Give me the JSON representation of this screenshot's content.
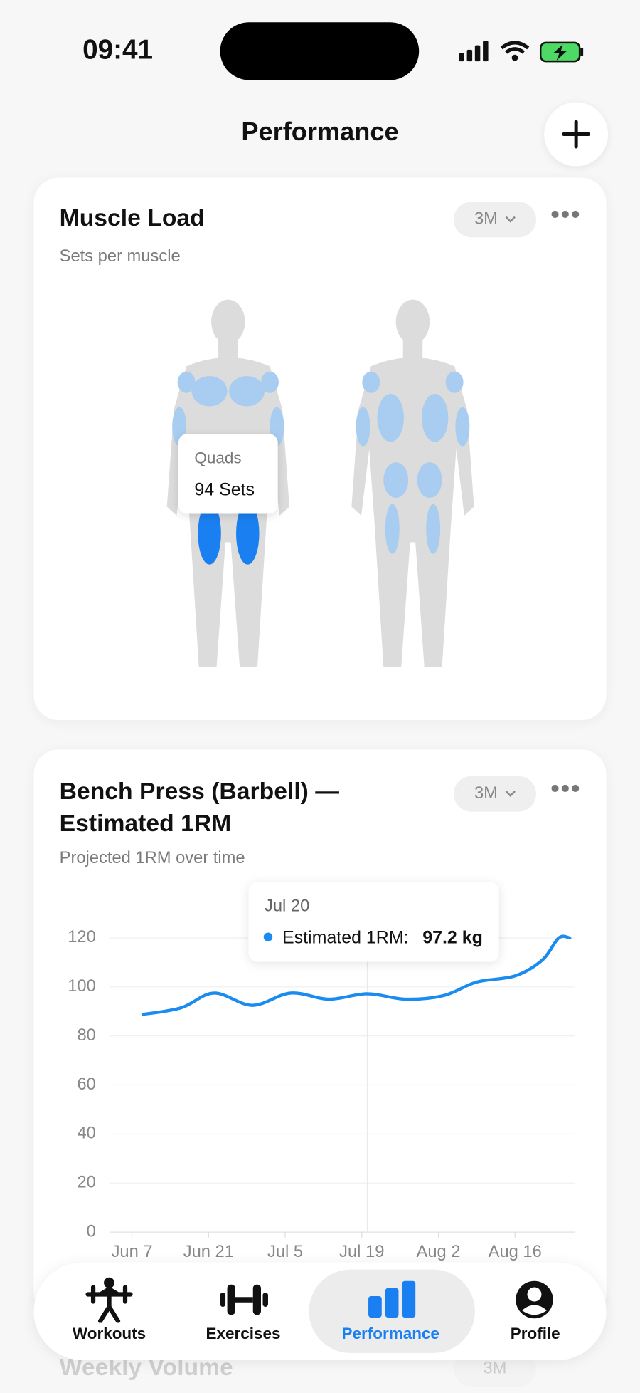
{
  "status_bar": {
    "time": "09:41"
  },
  "header": {
    "title": "Performance"
  },
  "muscle_card": {
    "title": "Muscle Load",
    "subtitle": "Sets per muscle",
    "range": "3M",
    "tooltip": {
      "muscle": "Quads",
      "sets": "94 Sets"
    }
  },
  "chart_card": {
    "title_line1": "Bench Press (Barbell) —",
    "title_line2": "Estimated 1RM",
    "subtitle": "Projected 1RM over time",
    "range": "3M"
  },
  "chart_data": {
    "type": "line",
    "x": [
      "Jun 9",
      "Jun 16",
      "Jun 22",
      "Jun 29",
      "Jul 6",
      "Jul 13",
      "Jul 20",
      "Jul 27",
      "Aug 3",
      "Aug 9",
      "Aug 16",
      "Aug 21",
      "Aug 24",
      "Aug 26"
    ],
    "series": [
      {
        "name": "Estimated 1RM:",
        "color": "#1a8cf0",
        "values": [
          88.8,
          91.5,
          97.5,
          92.5,
          97.5,
          95,
          97.2,
          95,
          96.5,
          102,
          104.5,
          111,
          120,
          120
        ]
      }
    ],
    "xlim": [
      "Jun 3",
      "Aug 27"
    ],
    "xticks": [
      "Jun 7",
      "Jun 21",
      "Jul 5",
      "Jul 19",
      "Aug 2",
      "Aug 16"
    ],
    "ylim": [
      0,
      120
    ],
    "yticks": [
      0,
      20,
      40,
      60,
      80,
      100,
      120
    ],
    "grid": true,
    "tooltip": {
      "x": "Jul 20",
      "value_label": "97.2 kg"
    }
  },
  "nav": [
    "Workouts",
    "Exercises",
    "Performance",
    "Profile"
  ],
  "next_card": {
    "title": "Weekly Volume",
    "range": "3M"
  }
}
